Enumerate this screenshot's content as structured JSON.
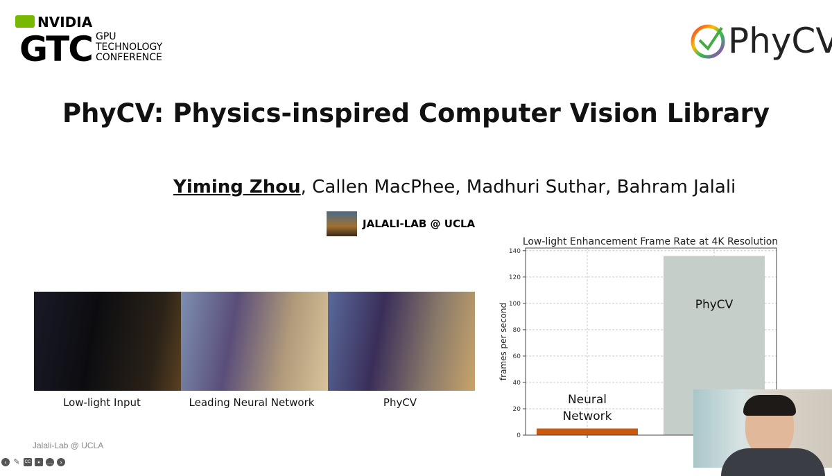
{
  "header": {
    "nvidia_brand": "NVIDIA",
    "gtc": "GTC",
    "gtc_sub": "GPU\nTECHNOLOGY\nCONFERENCE",
    "phycv_logo": "PhyCV"
  },
  "slide": {
    "title": "PhyCV: Physics-inspired Computer Vision Library",
    "lead_author": "Yiming Zhou",
    "other_authors": ", Callen MacPhee, Madhuri Suthar, Bahram Jalali",
    "lab": "JALALI-LAB @ UCLA",
    "captions": [
      "Low-light Input",
      "Leading Neural Network",
      "PhyCV"
    ],
    "footer": "Jalali-Lab @ UCLA"
  },
  "toolbar": {
    "icons": [
      "previous-icon",
      "pen-icon",
      "captions-icon",
      "camera-off-icon",
      "more-icon",
      "next-icon"
    ]
  },
  "colors": {
    "nn_bar": "#c85a0f",
    "phycv_bar": "#c6ceca"
  },
  "chart_data": {
    "type": "bar",
    "title": "Low-light Enhancement Frame Rate at 4K Resolution",
    "ylabel": "frames per second",
    "xlabel": "",
    "categories": [
      "Neural Network",
      "PhyCV"
    ],
    "bar_labels": [
      "Neural\nNetwork",
      "PhyCV"
    ],
    "values": [
      5,
      136
    ],
    "ylim": [
      0,
      142
    ],
    "yticks": [
      0,
      20,
      40,
      60,
      80,
      100,
      120,
      140
    ],
    "grid": true
  }
}
